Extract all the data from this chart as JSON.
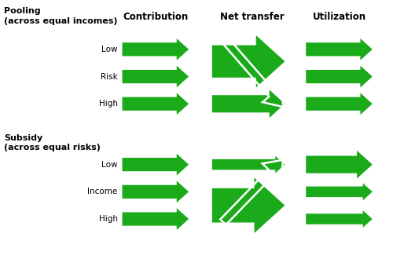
{
  "green": "#1aaa1a",
  "white": "#ffffff",
  "bg": "#ffffff",
  "col_headers": [
    "Contribution",
    "Net transfer",
    "Utilization"
  ],
  "section1_label": "Pooling\n(across equal incomes)",
  "section2_label": "Subsidy\n(across equal risks)",
  "row_labels_1": [
    "Low",
    "Risk",
    "High"
  ],
  "row_labels_2": [
    "Low",
    "Income",
    "High"
  ],
  "figsize": [
    5.0,
    3.3
  ],
  "dpi": 100
}
